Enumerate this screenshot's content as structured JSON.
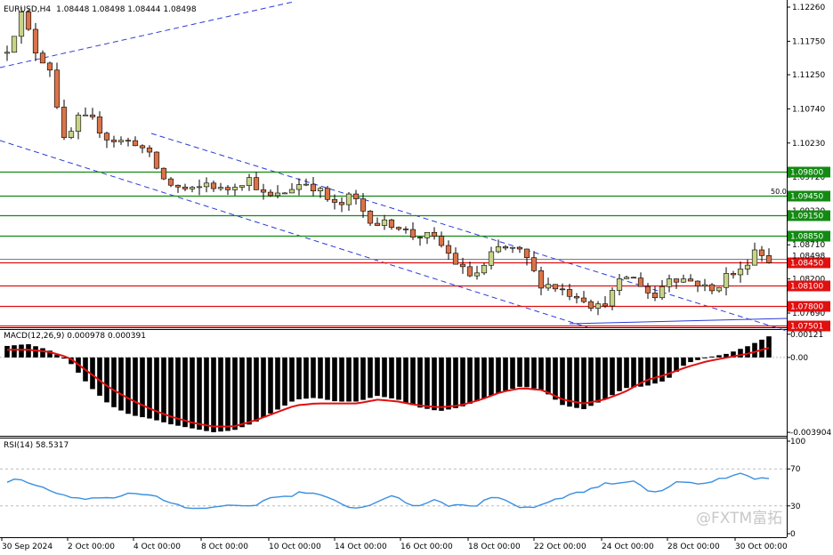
{
  "window": {
    "symbol": "EURUSD,H4",
    "ohlc": "1.08448 1.08498 1.08444 1.08498"
  },
  "watermark": "@FXTM富拓",
  "colors": {
    "bull": "#c8d38a",
    "bear": "#d9744a",
    "resistance": "#138a13",
    "support": "#e01010",
    "channel": "#2b3bd8",
    "macd_signal": "#e01010",
    "rsi": "#3a8fe0"
  },
  "chart_data": [
    {
      "type": "candlestick",
      "name": "price",
      "y_ticks": [
        "1.12260",
        "1.11750",
        "1.11250",
        "1.10740",
        "1.10230",
        "1.09720",
        "1.09220",
        "1.08710",
        "1.08200",
        "1.07690"
      ],
      "levels": [
        {
          "label": "1.09800",
          "value": 1.098,
          "kind": "resistance"
        },
        {
          "label": "1.09450",
          "value": 1.0945,
          "kind": "resistance"
        },
        {
          "label": "1.09150",
          "value": 1.0915,
          "kind": "resistance"
        },
        {
          "label": "1.08850",
          "value": 1.0885,
          "kind": "resistance"
        },
        {
          "label": "1.08450",
          "value": 1.0845,
          "kind": "support"
        },
        {
          "label": "1.08100",
          "value": 1.081,
          "kind": "support"
        },
        {
          "label": "1.07800",
          "value": 1.078,
          "kind": "support"
        },
        {
          "label": "1.07501",
          "value": 1.07501,
          "kind": "support"
        }
      ],
      "current_price": {
        "label": "1.08498",
        "value": 1.08498
      },
      "fib_label": "50.0",
      "anchors": [
        1.1165,
        1.1215,
        1.116,
        1.1135,
        1.102,
        1.106,
        1.1055,
        1.103,
        1.1025,
        1.1025,
        1.1,
        1.0965,
        1.0955,
        1.095,
        1.0965,
        1.095,
        1.0965,
        1.097,
        1.094,
        1.0945,
        1.096,
        1.0965,
        1.0945,
        1.0925,
        1.0945,
        1.0915,
        1.09,
        1.0905,
        1.0885,
        1.0885,
        1.0875,
        1.085,
        1.0825,
        1.083,
        1.0865,
        1.0865,
        1.0855,
        1.0815,
        1.081,
        1.08,
        1.0795,
        1.0775,
        1.0795,
        1.0825,
        1.0815,
        1.079,
        1.0825,
        1.082,
        1.0815,
        1.08,
        1.0825,
        1.083,
        1.0865,
        1.085
      ],
      "count": 108
    },
    {
      "type": "bar",
      "name": "MACD(12,26,9)",
      "title": "MACD(12,26,9) 0.000978 0.000391",
      "y_ticks": [
        "0.00121",
        "0.00",
        "-0.003904"
      ],
      "ylim": [
        -0.0039,
        0.0012
      ],
      "histogram_anchors": [
        0.0006,
        0.0007,
        0.0004,
        -0.0002,
        -0.0015,
        -0.0025,
        -0.003,
        -0.0032,
        -0.0035,
        -0.0037,
        -0.0039,
        -0.0038,
        -0.0034,
        -0.0028,
        -0.0022,
        -0.0021,
        -0.0023,
        -0.0023,
        -0.002,
        -0.0022,
        -0.0026,
        -0.0028,
        -0.0026,
        -0.0022,
        -0.0018,
        -0.0015,
        -0.0017,
        -0.0025,
        -0.0027,
        -0.0022,
        -0.0016,
        -0.0015,
        -0.0012,
        -0.0003,
        0.0,
        0.0002,
        0.0006,
        0.0011
      ],
      "signal_anchors": [
        0.0004,
        0.0004,
        0.0003,
        0.0,
        -0.0008,
        -0.0016,
        -0.0022,
        -0.0027,
        -0.0031,
        -0.0034,
        -0.0036,
        -0.0036,
        -0.0033,
        -0.0029,
        -0.0025,
        -0.0024,
        -0.0024,
        -0.0024,
        -0.0022,
        -0.0023,
        -0.0025,
        -0.0026,
        -0.0025,
        -0.0022,
        -0.0018,
        -0.0016,
        -0.0017,
        -0.0022,
        -0.0024,
        -0.0022,
        -0.0018,
        -0.0012,
        -0.0009,
        -0.0005,
        -0.0002,
        0.0,
        0.0002,
        0.0005
      ]
    },
    {
      "type": "line",
      "name": "RSI(14)",
      "title": "RSI(14) 58.5317",
      "y_ticks": [
        "100",
        "70",
        "30",
        "0"
      ],
      "ylim": [
        0,
        100
      ],
      "levels": [
        30,
        70
      ],
      "anchors": [
        55,
        60,
        52,
        48,
        42,
        38,
        36,
        40,
        38,
        45,
        42,
        40,
        35,
        30,
        28,
        27,
        30,
        31,
        30,
        33,
        41,
        40,
        45,
        43,
        38,
        33,
        27,
        30,
        38,
        40,
        32,
        30,
        38,
        30,
        32,
        30,
        38,
        40,
        30,
        27,
        32,
        37,
        42,
        45,
        50,
        55,
        55,
        58,
        46,
        45,
        55,
        55,
        53,
        58,
        60,
        65,
        58,
        60
      ]
    },
    {
      "type": "axis",
      "name": "time",
      "x_labels": [
        "30 Sep 2024",
        "2 Oct 00:00",
        "4 Oct 00:00",
        "8 Oct 00:00",
        "10 Oct 00:00",
        "14 Oct 00:00",
        "16 Oct 00:00",
        "18 Oct 00:00",
        "22 Oct 00:00",
        "24 Oct 00:00",
        "28 Oct 00:00",
        "30 Oct 00:00"
      ]
    }
  ]
}
